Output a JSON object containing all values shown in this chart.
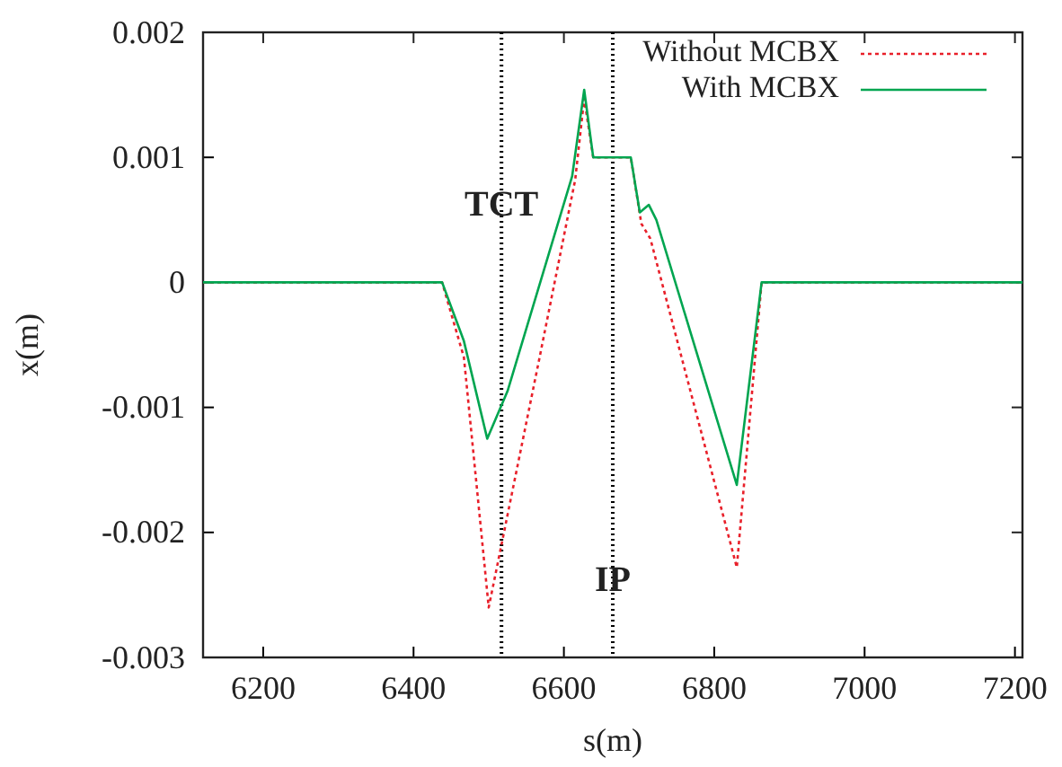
{
  "chart_data": {
    "type": "line",
    "xlabel": "s(m)",
    "ylabel": "x(m)",
    "xlim": [
      6120,
      7210
    ],
    "xticks": [
      6200,
      6400,
      6600,
      6800,
      7000,
      7200
    ],
    "ylim": [
      -0.003,
      0.002
    ],
    "yticks": [
      -0.003,
      -0.002,
      -0.001,
      0,
      0.001,
      0.002
    ],
    "legend": "top right",
    "marker": "none",
    "grid": false,
    "ref_lines": [
      {
        "axis": "x",
        "value": 6517,
        "label": "TCT",
        "line_style": "dotted",
        "color": "#000000"
      },
      {
        "axis": "x",
        "value": 6665,
        "label": "IP",
        "line_style": "dotted",
        "color": "#000000"
      }
    ],
    "series": [
      {
        "name": "Without MCBX",
        "color": "#e8202a",
        "line_style": "dotted",
        "x": [
          6120,
          6438,
          6467,
          6500,
          6567,
          6615,
          6627,
          6639,
          6689,
          6703,
          6715,
          6830,
          6863,
          7210
        ],
        "values": [
          0,
          0,
          -0.0006,
          -0.0026,
          -0.00062,
          0.00082,
          0.00147,
          0.001,
          0.001,
          0.00047,
          0.00035,
          -0.00228,
          0,
          0
        ]
      },
      {
        "name": "With MCBX",
        "color": "#00a550",
        "line_style": "solid",
        "x": [
          6120,
          6438,
          6467,
          6498,
          6525,
          6611,
          6627,
          6639,
          6689,
          6701,
          6713,
          6723,
          6830,
          6863,
          7210
        ],
        "values": [
          0,
          0,
          -0.00047,
          -0.00125,
          -0.00087,
          0.00085,
          0.00154,
          0.001,
          0.001,
          0.00056,
          0.00062,
          0.0005,
          -0.00162,
          0,
          0
        ]
      }
    ]
  }
}
